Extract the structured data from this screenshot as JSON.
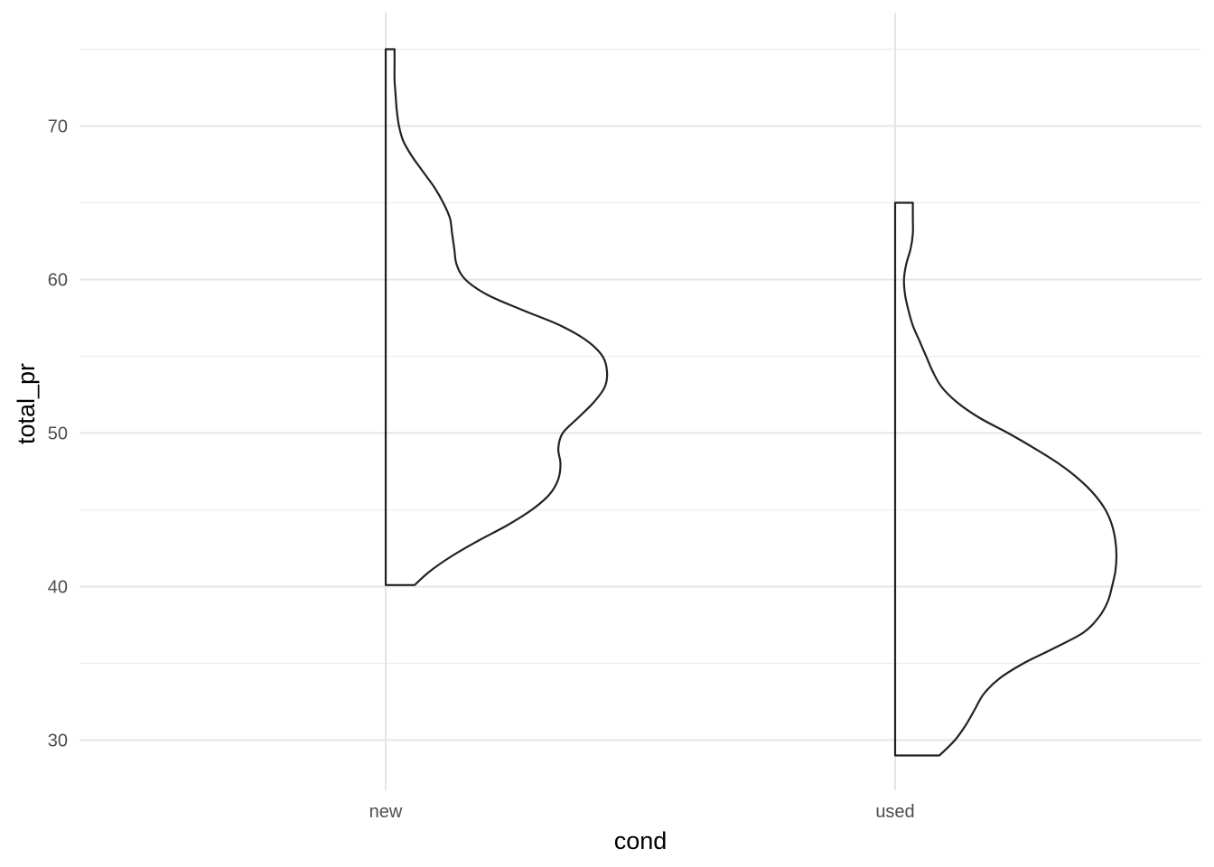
{
  "chart_data": {
    "type": "half-violin",
    "xlabel": "cond",
    "ylabel": "total_pr",
    "categories": [
      "new",
      "used"
    ],
    "ylim": [
      27.8,
      77.3
    ],
    "yticks": [
      30,
      40,
      50,
      60,
      70
    ],
    "y_minor": [
      35,
      45,
      55,
      65,
      75
    ],
    "grid": true,
    "legend": "none",
    "line_color": "#222222",
    "grid_color": "#e5e5e5",
    "series": [
      {
        "category": "new",
        "min": 40.1,
        "max": 75.0,
        "density_profile": [
          [
            40.1,
            0.13
          ],
          [
            41.0,
            0.2
          ],
          [
            42.0,
            0.3
          ],
          [
            43.0,
            0.42
          ],
          [
            44.0,
            0.55
          ],
          [
            45.0,
            0.66
          ],
          [
            46.0,
            0.74
          ],
          [
            47.0,
            0.78
          ],
          [
            48.0,
            0.79
          ],
          [
            49.0,
            0.78
          ],
          [
            50.0,
            0.8
          ],
          [
            51.0,
            0.87
          ],
          [
            52.0,
            0.94
          ],
          [
            53.0,
            0.99
          ],
          [
            54.0,
            1.0
          ],
          [
            55.0,
            0.98
          ],
          [
            56.0,
            0.91
          ],
          [
            57.0,
            0.79
          ],
          [
            58.0,
            0.62
          ],
          [
            59.0,
            0.46
          ],
          [
            60.0,
            0.36
          ],
          [
            61.0,
            0.32
          ],
          [
            62.0,
            0.31
          ],
          [
            63.0,
            0.3
          ],
          [
            64.0,
            0.29
          ],
          [
            65.0,
            0.26
          ],
          [
            66.0,
            0.22
          ],
          [
            67.0,
            0.17
          ],
          [
            68.0,
            0.12
          ],
          [
            69.0,
            0.08
          ],
          [
            70.0,
            0.06
          ],
          [
            71.0,
            0.05
          ],
          [
            72.0,
            0.045
          ],
          [
            73.0,
            0.04
          ],
          [
            74.0,
            0.04
          ],
          [
            75.0,
            0.04
          ]
        ]
      },
      {
        "category": "used",
        "min": 29.0,
        "max": 65.0,
        "density_profile": [
          [
            29.0,
            0.2
          ],
          [
            30.0,
            0.27
          ],
          [
            31.0,
            0.32
          ],
          [
            32.0,
            0.36
          ],
          [
            33.0,
            0.4
          ],
          [
            34.0,
            0.47
          ],
          [
            35.0,
            0.58
          ],
          [
            36.0,
            0.72
          ],
          [
            37.0,
            0.85
          ],
          [
            38.0,
            0.92
          ],
          [
            39.0,
            0.96
          ],
          [
            40.0,
            0.98
          ],
          [
            41.0,
            0.995
          ],
          [
            42.0,
            1.0
          ],
          [
            43.0,
            0.995
          ],
          [
            44.0,
            0.98
          ],
          [
            45.0,
            0.95
          ],
          [
            46.0,
            0.9
          ],
          [
            47.0,
            0.83
          ],
          [
            48.0,
            0.74
          ],
          [
            49.0,
            0.63
          ],
          [
            50.0,
            0.51
          ],
          [
            51.0,
            0.38
          ],
          [
            52.0,
            0.28
          ],
          [
            53.0,
            0.21
          ],
          [
            54.0,
            0.17
          ],
          [
            55.0,
            0.14
          ],
          [
            56.0,
            0.11
          ],
          [
            57.0,
            0.08
          ],
          [
            58.0,
            0.06
          ],
          [
            59.0,
            0.045
          ],
          [
            60.0,
            0.04
          ],
          [
            61.0,
            0.05
          ],
          [
            62.0,
            0.07
          ],
          [
            63.0,
            0.08
          ],
          [
            64.0,
            0.08
          ],
          [
            65.0,
            0.08
          ]
        ]
      }
    ]
  }
}
